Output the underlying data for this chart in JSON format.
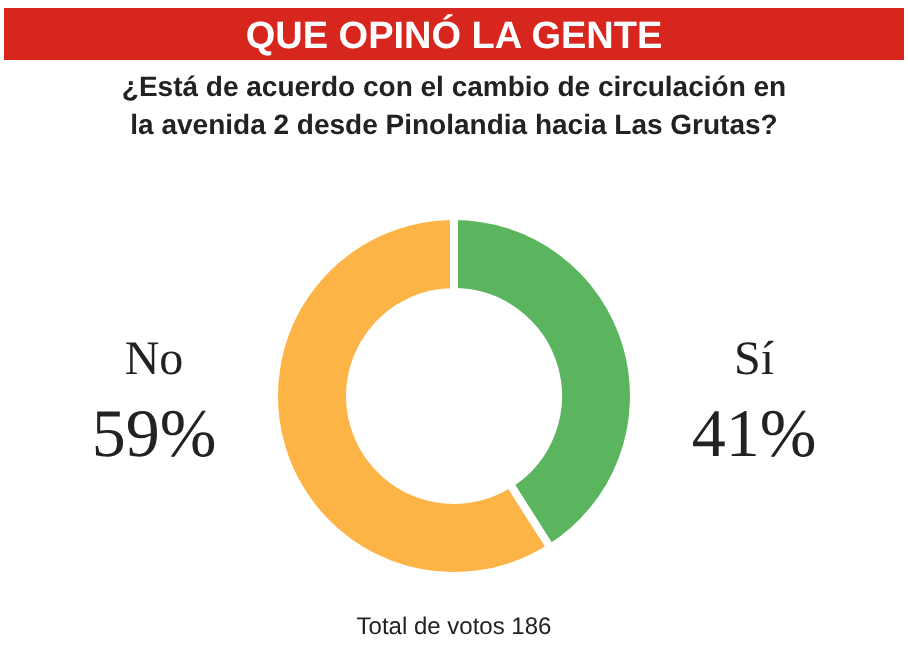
{
  "chart_data": {
    "type": "donut",
    "title": "QUE OPINÓ LA GENTE",
    "subtitle": "¿Está de acuerdo con el cambio de circulación en la avenida 2 desde Pinolandia hacia Las Grutas?",
    "categories": [
      "Sí",
      "No"
    ],
    "values": [
      41,
      59
    ],
    "colors": [
      "#5ab55e",
      "#fbb445"
    ],
    "value_labels": [
      "41%",
      "59%"
    ],
    "annotations": [
      "Total de votos 186"
    ]
  }
}
